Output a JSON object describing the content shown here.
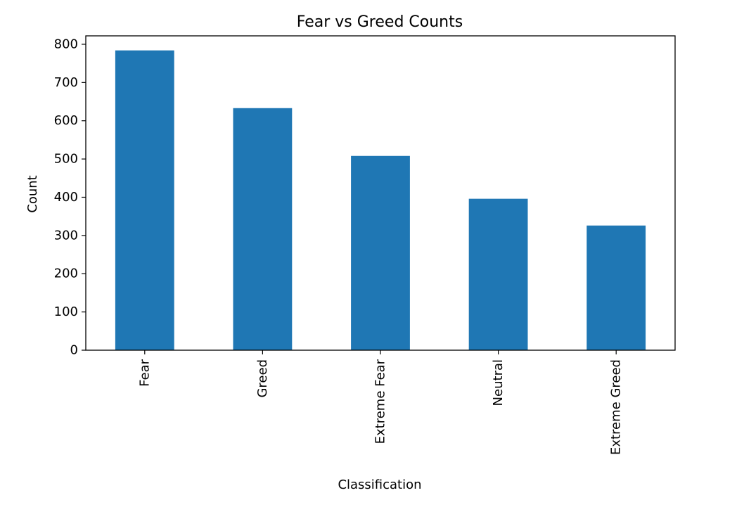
{
  "chart_data": {
    "type": "bar",
    "title": "Fear vs Greed Counts",
    "xlabel": "Classification",
    "ylabel": "Count",
    "categories": [
      "Fear",
      "Greed",
      "Extreme Fear",
      "Neutral",
      "Extreme Greed"
    ],
    "values": [
      784,
      633,
      508,
      396,
      326
    ],
    "ylim": [
      0,
      822
    ],
    "yticks": [
      0,
      100,
      200,
      300,
      400,
      500,
      600,
      700,
      800
    ],
    "bar_color": "#1f77b4",
    "grid": false,
    "legend": "none",
    "xtick_rotation": "vertical"
  }
}
